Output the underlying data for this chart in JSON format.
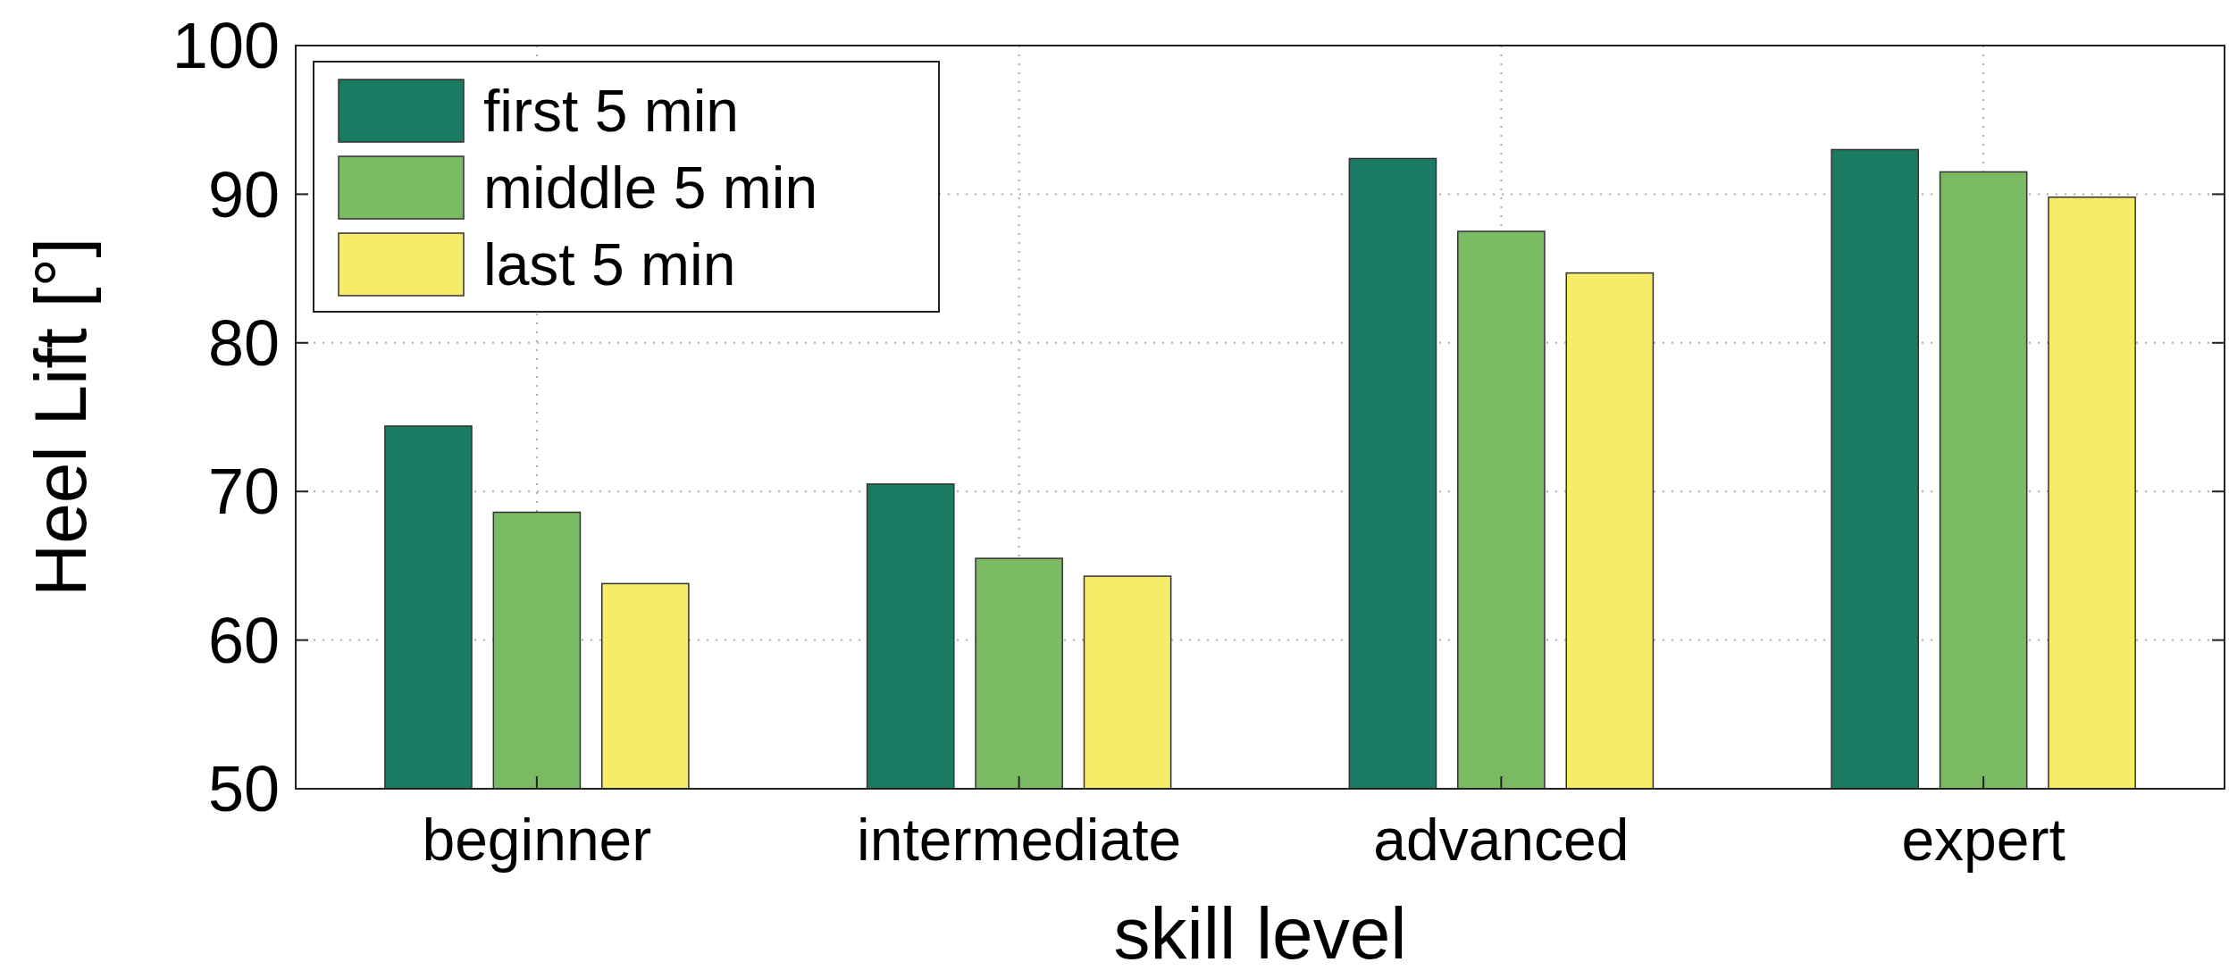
{
  "chart_data": {
    "type": "bar",
    "xlabel": "skill level",
    "ylabel": "Heel Lift [°]",
    "categories": [
      "beginner",
      "intermediate",
      "advanced",
      "expert"
    ],
    "series": [
      {
        "name": "first 5 min",
        "color": "#1b7a62",
        "values": [
          74.4,
          70.5,
          92.4,
          93.0
        ]
      },
      {
        "name": "middle 5 min",
        "color": "#7aba62",
        "values": [
          68.6,
          65.5,
          87.5,
          91.5
        ]
      },
      {
        "name": "last 5 min",
        "color": "#f5ec6a",
        "values": [
          63.8,
          64.3,
          84.7,
          89.8
        ]
      }
    ],
    "ylim": [
      50,
      100
    ],
    "yticks": [
      50,
      60,
      70,
      80,
      90,
      100
    ],
    "grid": true,
    "legend": "top left"
  }
}
